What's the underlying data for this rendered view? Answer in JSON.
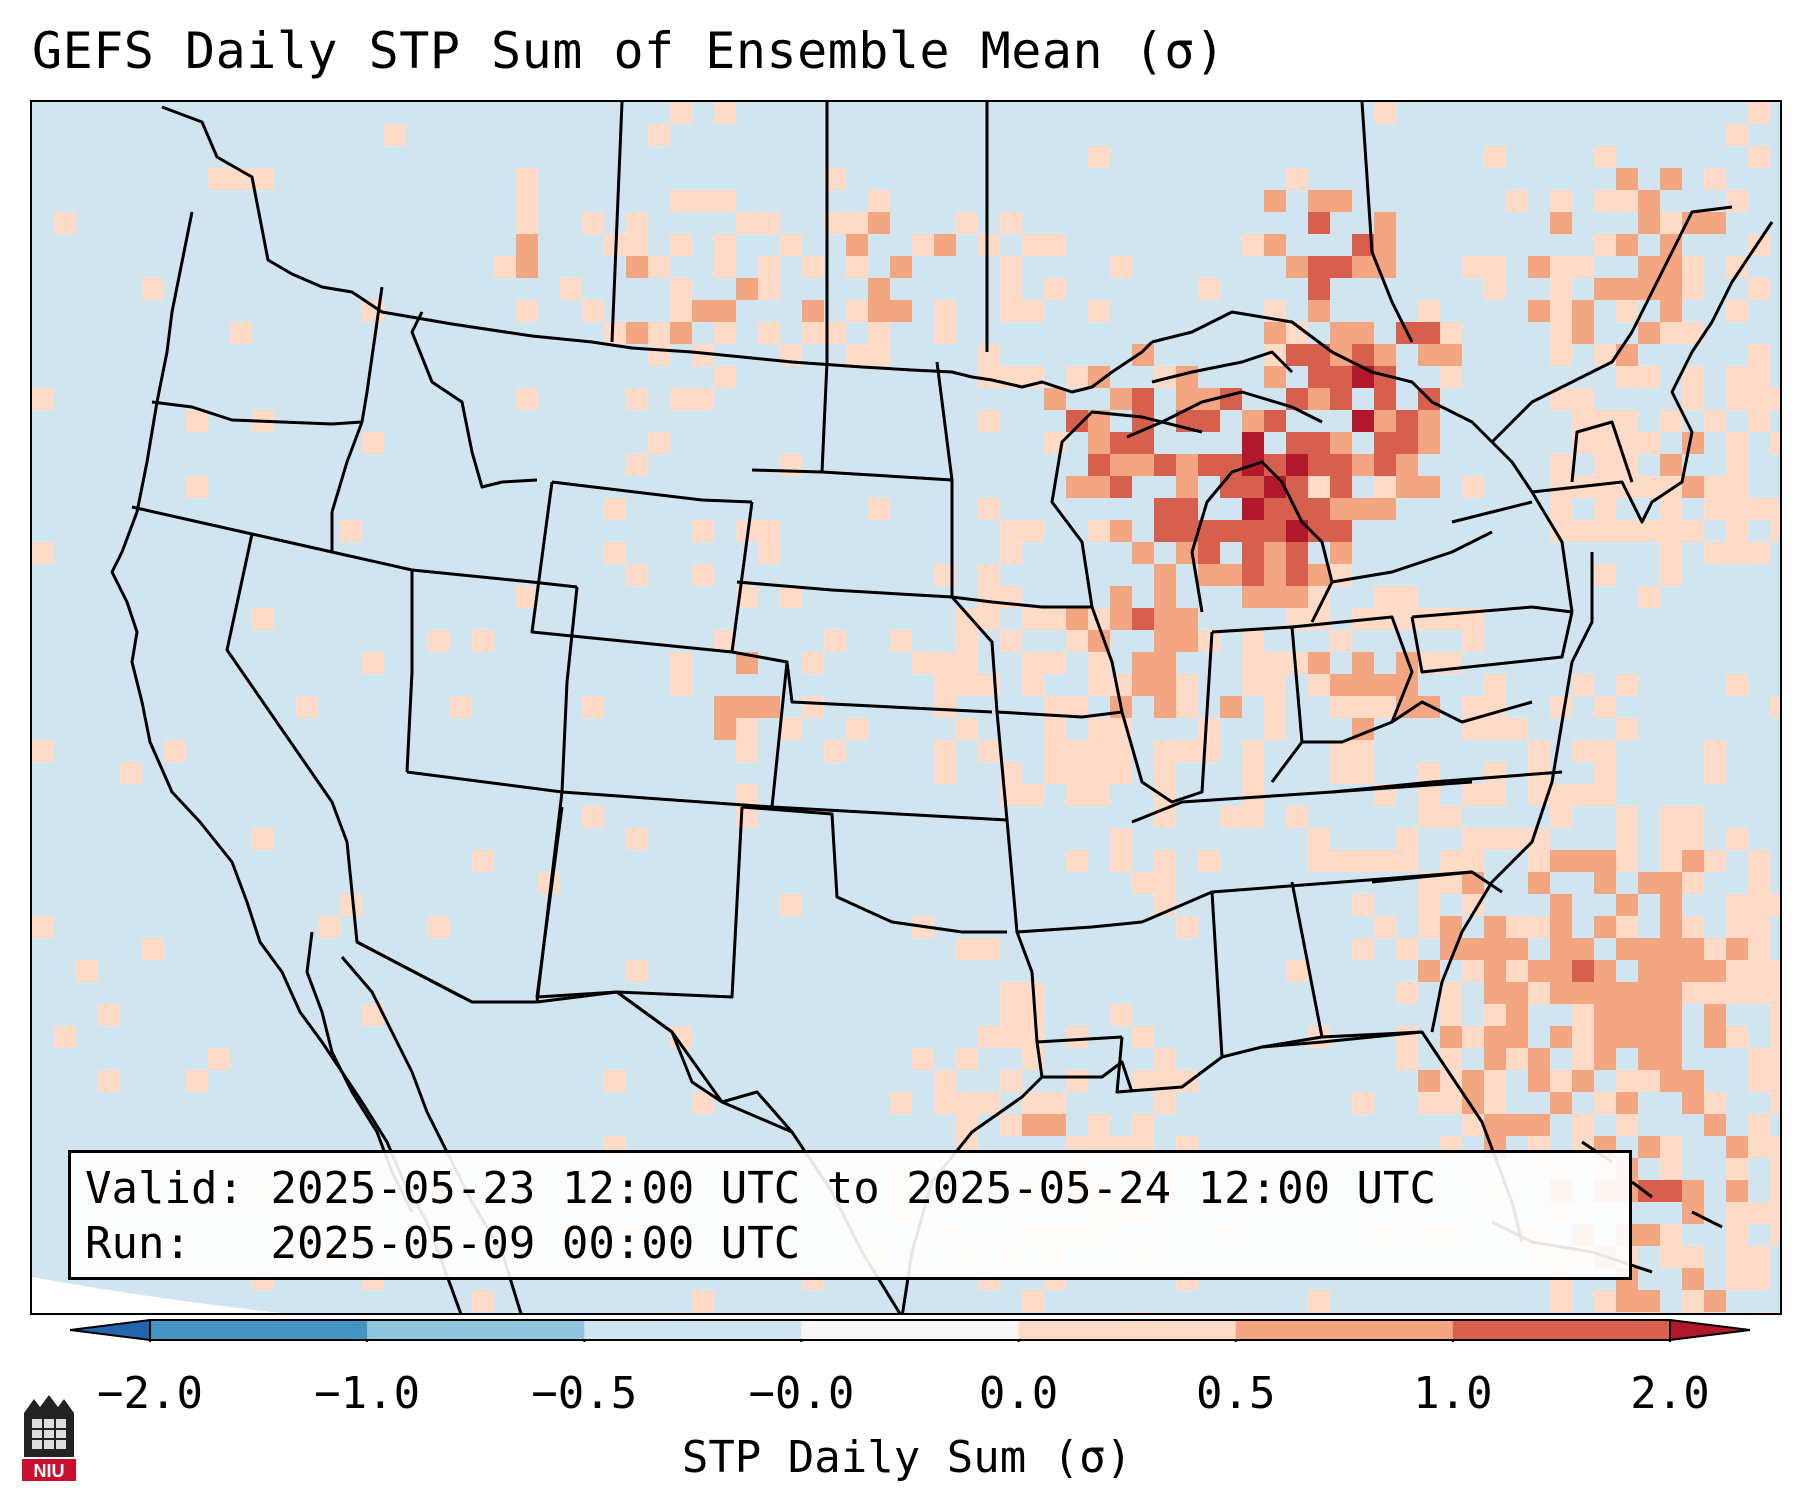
{
  "title": "GEFS Daily STP Sum of Ensemble Mean (σ)",
  "info": {
    "valid_label": "Valid:",
    "valid_value": "2025-05-23 12:00 UTC to 2025-05-24 12:00 UTC",
    "run_label": "Run:",
    "run_value": "2025-05-09 00:00 UTC"
  },
  "colorbar": {
    "label": "STP Daily Sum (σ)",
    "ticks": [
      "−2.0",
      "−1.0",
      "−0.5",
      "−0.0",
      "0.0",
      "0.5",
      "1.0",
      "2.0"
    ],
    "bins": [
      {
        "range": "-2.0 to -1.0",
        "color": "#4393c3"
      },
      {
        "range": "-1.0 to -0.5",
        "color": "#92c5de"
      },
      {
        "range": "-0.5 to -0.0",
        "color": "#d1e5f0"
      },
      {
        "range": "-0.0 to 0.0",
        "color": "#f7f7f7"
      },
      {
        "range": "0.0 to 0.5",
        "color": "#fddbc7"
      },
      {
        "range": "0.5 to 1.0",
        "color": "#f4a582"
      },
      {
        "range": "1.0 to 2.0",
        "color": "#d6604d"
      }
    ],
    "under_color": "#2166ac",
    "over_color": "#b2182b"
  },
  "map": {
    "background_color": "#d1e5f0",
    "outside_color": "#ffffff",
    "hotspots": [
      {
        "region": "Michigan Lower Peninsula",
        "level": "1.0-2.0+"
      },
      {
        "region": "Northern Wisconsin / Upper Michigan",
        "level": "1.0-2.0"
      },
      {
        "region": "Ontario north of Lake Huron",
        "level": "1.0-2.0+"
      },
      {
        "region": "Western Atlantic east of Florida",
        "level": "0.5-2.0"
      },
      {
        "region": "Gulf coast Texas/Louisiana",
        "level": "0.0-1.0"
      }
    ]
  },
  "logo": {
    "text": "NIU",
    "color": "#c8102e"
  }
}
